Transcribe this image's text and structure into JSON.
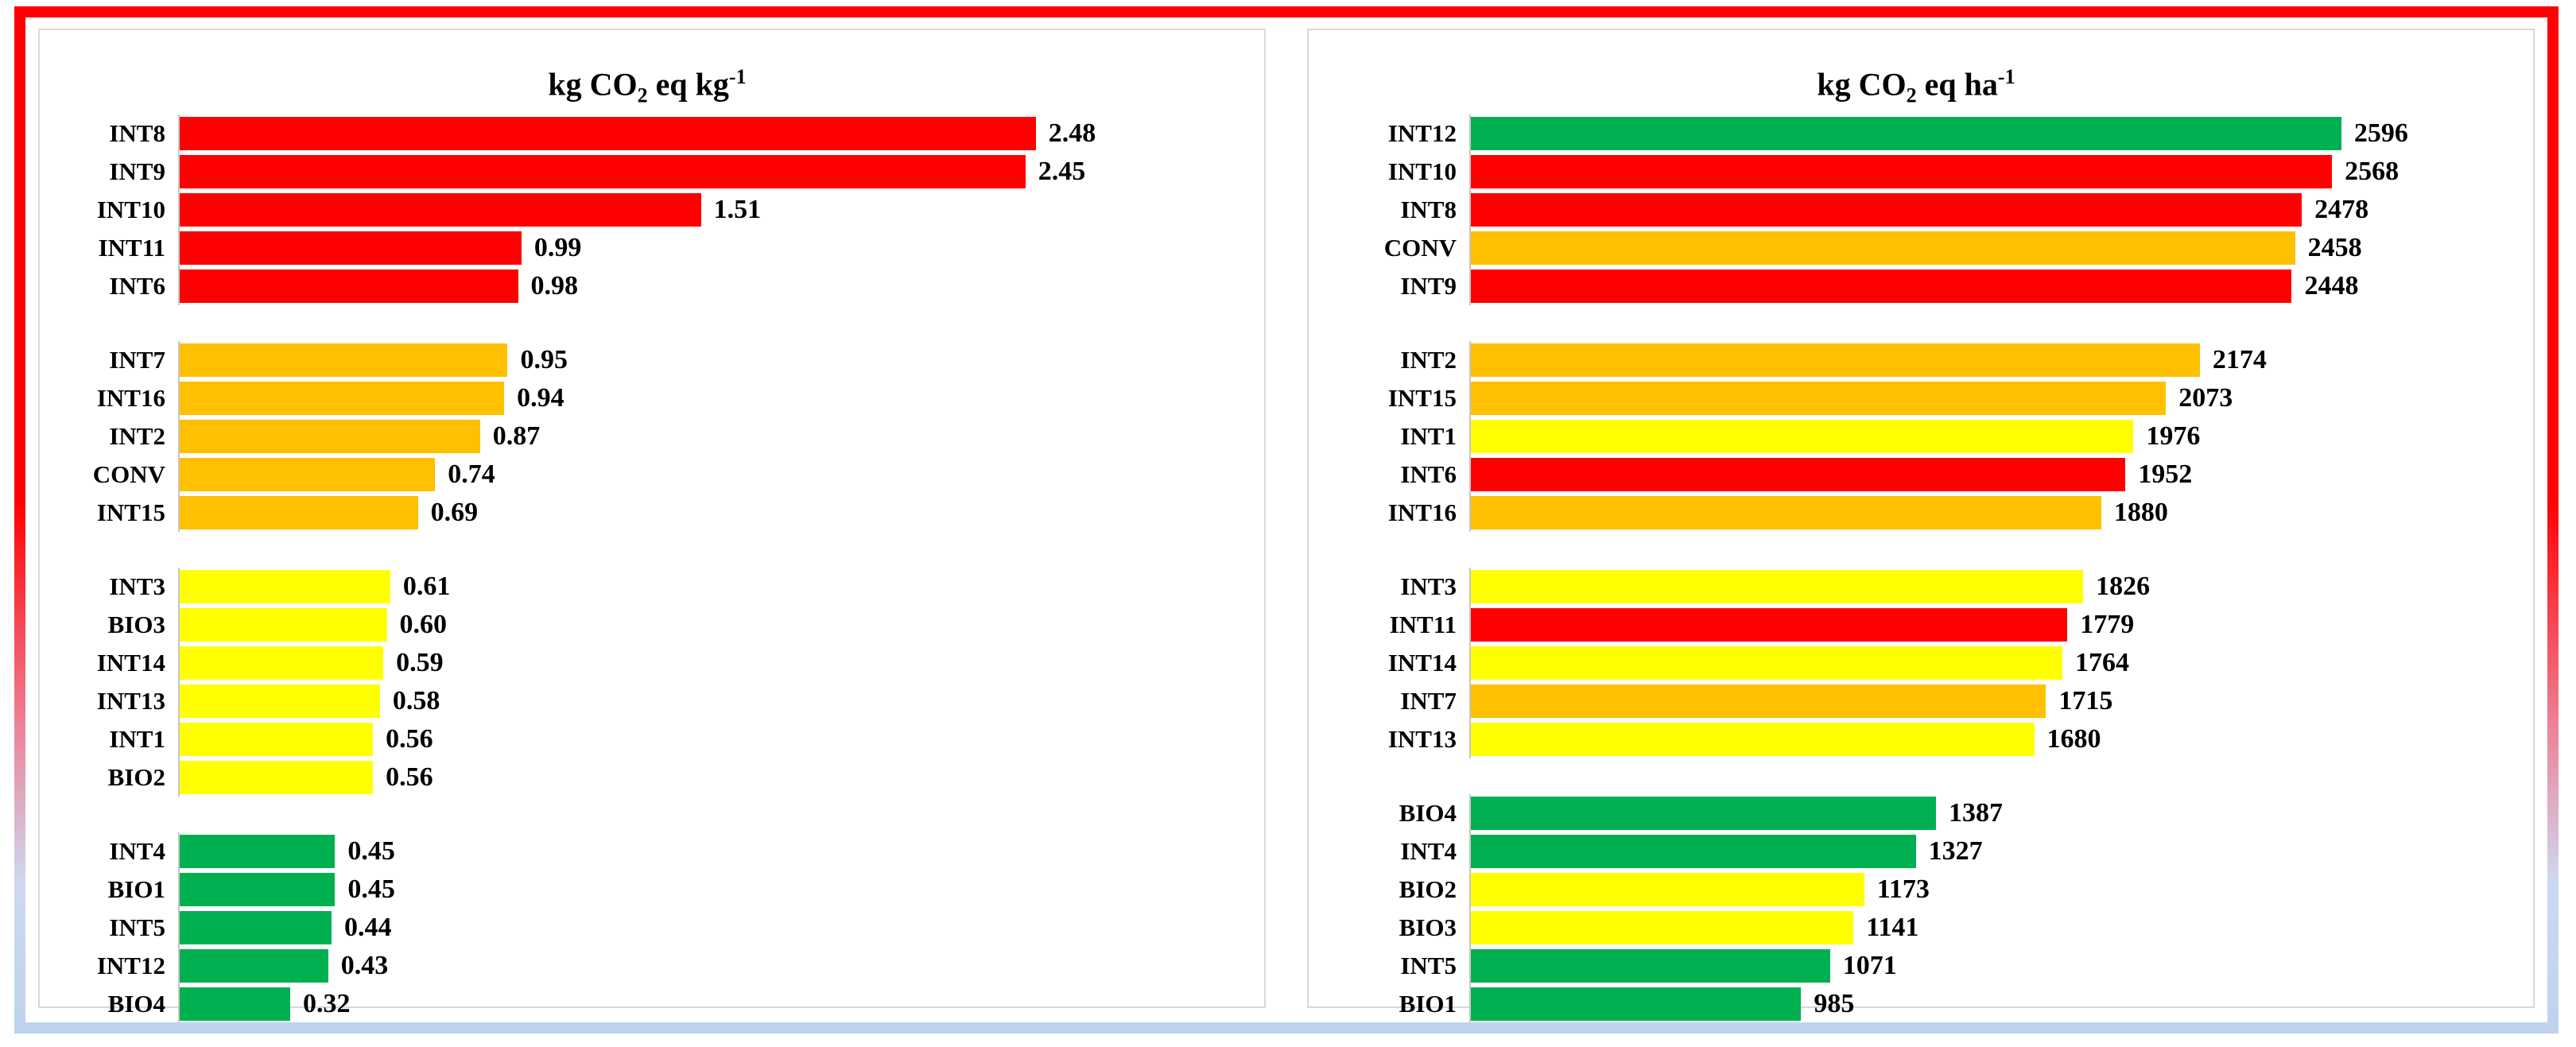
{
  "figure": {
    "palette": {
      "red": "#ff0000",
      "orange": "#ffc000",
      "yellow": "#ffff00",
      "green": "#00b050"
    },
    "frame": {
      "top_border_color": "#ff0000",
      "bottom_border_color": "#bed3ed",
      "panel_border_color": "#d9d9d9"
    }
  },
  "chart_data": [
    {
      "type": "bar",
      "orientation": "horizontal",
      "title": "kg CO2 eq kg-1",
      "title_rich": {
        "prefix": "kg CO",
        "sub": "2",
        "mid": " eq kg",
        "sup": "-1"
      },
      "xlim": [
        0,
        3.1
      ],
      "grid": false,
      "legend": false,
      "value_labels": "end-of-bar",
      "groups": [
        {
          "bars": [
            {
              "label": "INT8",
              "value": 2.48,
              "display": "2.48",
              "color": "red"
            },
            {
              "label": "INT9",
              "value": 2.45,
              "display": "2.45",
              "color": "red"
            },
            {
              "label": "INT10",
              "value": 1.51,
              "display": "1.51",
              "color": "red"
            },
            {
              "label": "INT11",
              "value": 0.99,
              "display": "0.99",
              "color": "red"
            },
            {
              "label": "INT6",
              "value": 0.98,
              "display": "0.98",
              "color": "red"
            }
          ]
        },
        {
          "bars": [
            {
              "label": "INT7",
              "value": 0.95,
              "display": "0.95",
              "color": "orange"
            },
            {
              "label": "INT16",
              "value": 0.94,
              "display": "0.94",
              "color": "orange"
            },
            {
              "label": "INT2",
              "value": 0.87,
              "display": "0.87",
              "color": "orange"
            },
            {
              "label": "CONV",
              "value": 0.74,
              "display": "0.74",
              "color": "orange"
            },
            {
              "label": "INT15",
              "value": 0.69,
              "display": "0.69",
              "color": "orange"
            }
          ]
        },
        {
          "bars": [
            {
              "label": "INT3",
              "value": 0.61,
              "display": "0.61",
              "color": "yellow"
            },
            {
              "label": "BIO3",
              "value": 0.6,
              "display": "0.60",
              "color": "yellow"
            },
            {
              "label": "INT14",
              "value": 0.59,
              "display": "0.59",
              "color": "yellow"
            },
            {
              "label": "INT13",
              "value": 0.58,
              "display": "0.58",
              "color": "yellow"
            },
            {
              "label": "INT1",
              "value": 0.56,
              "display": "0.56",
              "color": "yellow"
            },
            {
              "label": "BIO2",
              "value": 0.56,
              "display": "0.56",
              "color": "yellow"
            }
          ]
        },
        {
          "bars": [
            {
              "label": "INT4",
              "value": 0.45,
              "display": "0.45",
              "color": "green"
            },
            {
              "label": "BIO1",
              "value": 0.45,
              "display": "0.45",
              "color": "green"
            },
            {
              "label": "INT5",
              "value": 0.44,
              "display": "0.44",
              "color": "green"
            },
            {
              "label": "INT12",
              "value": 0.43,
              "display": "0.43",
              "color": "green"
            },
            {
              "label": "BIO4",
              "value": 0.32,
              "display": "0.32",
              "color": "green"
            }
          ]
        }
      ]
    },
    {
      "type": "bar",
      "orientation": "horizontal",
      "title": "kg CO2 eq ha-1",
      "title_rich": {
        "prefix": "kg CO",
        "sub": "2",
        "mid": " eq ha",
        "sup": "-1"
      },
      "xlim": [
        0,
        3125
      ],
      "grid": false,
      "legend": false,
      "value_labels": "end-of-bar",
      "groups": [
        {
          "bars": [
            {
              "label": "INT12",
              "value": 2596,
              "display": "2596",
              "color": "green"
            },
            {
              "label": "INT10",
              "value": 2568,
              "display": "2568",
              "color": "red"
            },
            {
              "label": "INT8",
              "value": 2478,
              "display": "2478",
              "color": "red"
            },
            {
              "label": "CONV",
              "value": 2458,
              "display": "2458",
              "color": "orange"
            },
            {
              "label": "INT9",
              "value": 2448,
              "display": "2448",
              "color": "red"
            }
          ]
        },
        {
          "bars": [
            {
              "label": "INT2",
              "value": 2174,
              "display": "2174",
              "color": "orange"
            },
            {
              "label": "INT15",
              "value": 2073,
              "display": "2073",
              "color": "orange"
            },
            {
              "label": "INT1",
              "value": 1976,
              "display": "1976",
              "color": "yellow"
            },
            {
              "label": "INT6",
              "value": 1952,
              "display": "1952",
              "color": "red"
            },
            {
              "label": "INT16",
              "value": 1880,
              "display": "1880",
              "color": "orange"
            }
          ]
        },
        {
          "bars": [
            {
              "label": "INT3",
              "value": 1826,
              "display": "1826",
              "color": "yellow"
            },
            {
              "label": "INT11",
              "value": 1779,
              "display": "1779",
              "color": "red"
            },
            {
              "label": "INT14",
              "value": 1764,
              "display": "1764",
              "color": "yellow"
            },
            {
              "label": "INT7",
              "value": 1715,
              "display": "1715",
              "color": "orange"
            },
            {
              "label": "INT13",
              "value": 1680,
              "display": "1680",
              "color": "yellow"
            }
          ]
        },
        {
          "bars": [
            {
              "label": "BIO4",
              "value": 1387,
              "display": "1387",
              "color": "green"
            },
            {
              "label": "INT4",
              "value": 1327,
              "display": "1327",
              "color": "green"
            },
            {
              "label": "BIO2",
              "value": 1173,
              "display": "1173",
              "color": "yellow"
            },
            {
              "label": "BIO3",
              "value": 1141,
              "display": "1141",
              "color": "yellow"
            },
            {
              "label": "INT5",
              "value": 1071,
              "display": "1071",
              "color": "green"
            },
            {
              "label": "BIO1",
              "value": 985,
              "display": "985",
              "color": "green"
            }
          ]
        }
      ]
    }
  ]
}
